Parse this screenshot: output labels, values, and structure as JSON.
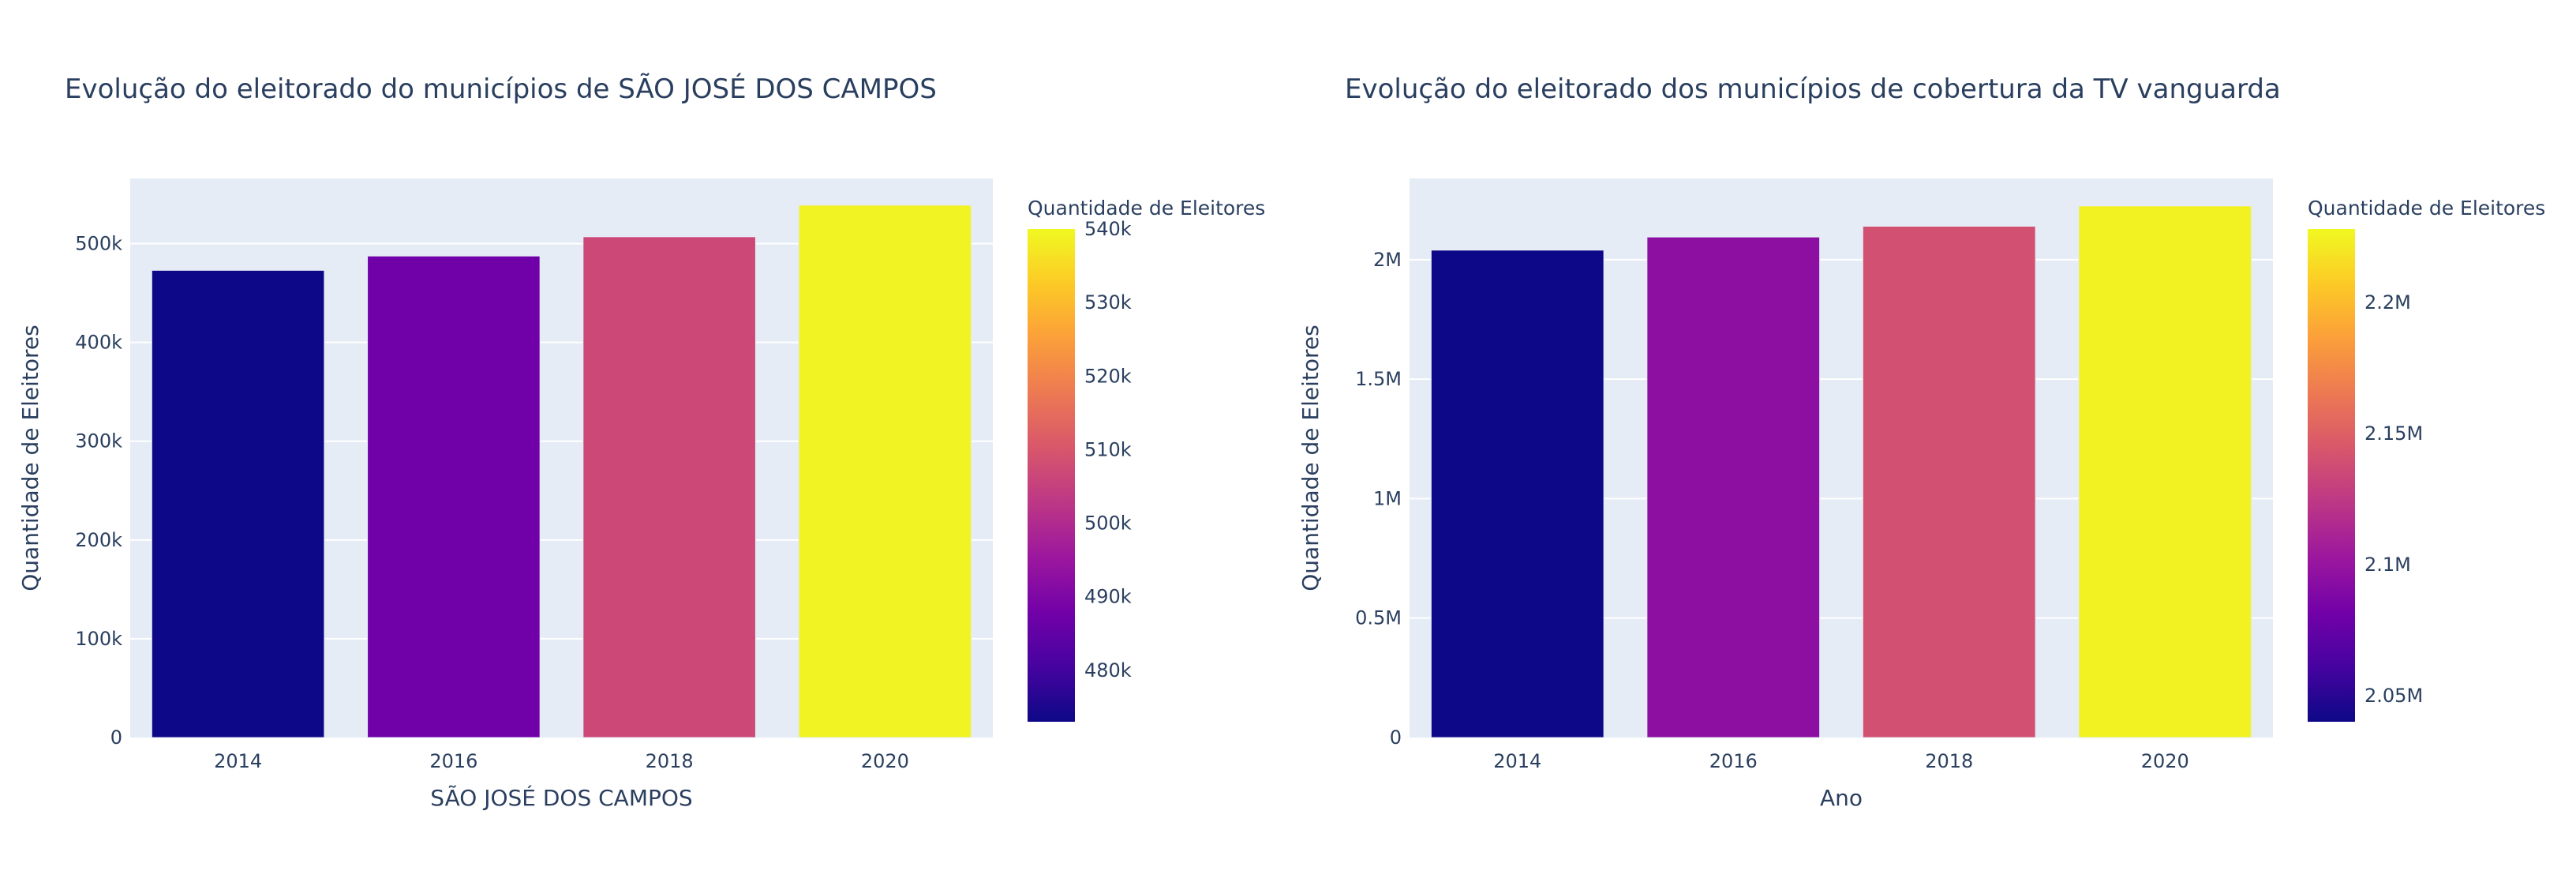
{
  "chart_data": [
    {
      "type": "bar",
      "title": "Evolução do eleitorado do municípios de SÃO JOSÉ DOS CAMPOS",
      "xlabel": "SÃO JOSÉ DOS CAMPOS",
      "ylabel": "Quantidade de Eleitores",
      "categories": [
        "2014",
        "2016",
        "2018",
        "2020"
      ],
      "values": [
        473000,
        487500,
        507000,
        539000
      ],
      "ylim": [
        0,
        566000
      ],
      "yticks": [
        {
          "value": 0,
          "label": "0"
        },
        {
          "value": 100000,
          "label": "100k"
        },
        {
          "value": 200000,
          "label": "200k"
        },
        {
          "value": 300000,
          "label": "300k"
        },
        {
          "value": 400000,
          "label": "400k"
        },
        {
          "value": 500000,
          "label": "500k"
        }
      ],
      "grid": true,
      "legend": "colorbar-right",
      "colorbar": {
        "title": "Quantidade de Eleitores",
        "range": [
          473000,
          540000
        ],
        "ticks": [
          {
            "value": 480000,
            "label": "480k"
          },
          {
            "value": 490000,
            "label": "490k"
          },
          {
            "value": 500000,
            "label": "500k"
          },
          {
            "value": 510000,
            "label": "510k"
          },
          {
            "value": 520000,
            "label": "520k"
          },
          {
            "value": 530000,
            "label": "530k"
          },
          {
            "value": 540000,
            "label": "540k"
          }
        ]
      }
    },
    {
      "type": "bar",
      "title": "Evolução do eleitorado dos municípios de cobertura da TV vanguarda",
      "xlabel": "Ano",
      "ylabel": "Quantidade de Eleitores",
      "categories": [
        "2014",
        "2016",
        "2018",
        "2020"
      ],
      "values": [
        2040000,
        2095000,
        2140000,
        2225000
      ],
      "ylim": [
        0,
        2340000
      ],
      "yticks": [
        {
          "value": 0,
          "label": "0"
        },
        {
          "value": 500000,
          "label": "0.5M"
        },
        {
          "value": 1000000,
          "label": "1M"
        },
        {
          "value": 1500000,
          "label": "1.5M"
        },
        {
          "value": 2000000,
          "label": "2M"
        }
      ],
      "grid": true,
      "legend": "colorbar-right",
      "colorbar": {
        "title": "Quantidade de Eleitores",
        "range": [
          2040000,
          2228000
        ],
        "ticks": [
          {
            "value": 2050000,
            "label": "2.05M"
          },
          {
            "value": 2100000,
            "label": "2.1M"
          },
          {
            "value": 2150000,
            "label": "2.15M"
          },
          {
            "value": 2200000,
            "label": "2.2M"
          }
        ]
      }
    }
  ],
  "colorscale": [
    "#0d0887",
    "#46039f",
    "#7201a8",
    "#9c179e",
    "#bd3786",
    "#d8576b",
    "#ed7953",
    "#fb9f3a",
    "#fdca26",
    "#f0f921"
  ],
  "colors": {
    "plot_bg": "#e5ecf6",
    "grid": "#ffffff",
    "text": "#2a3f5f"
  }
}
